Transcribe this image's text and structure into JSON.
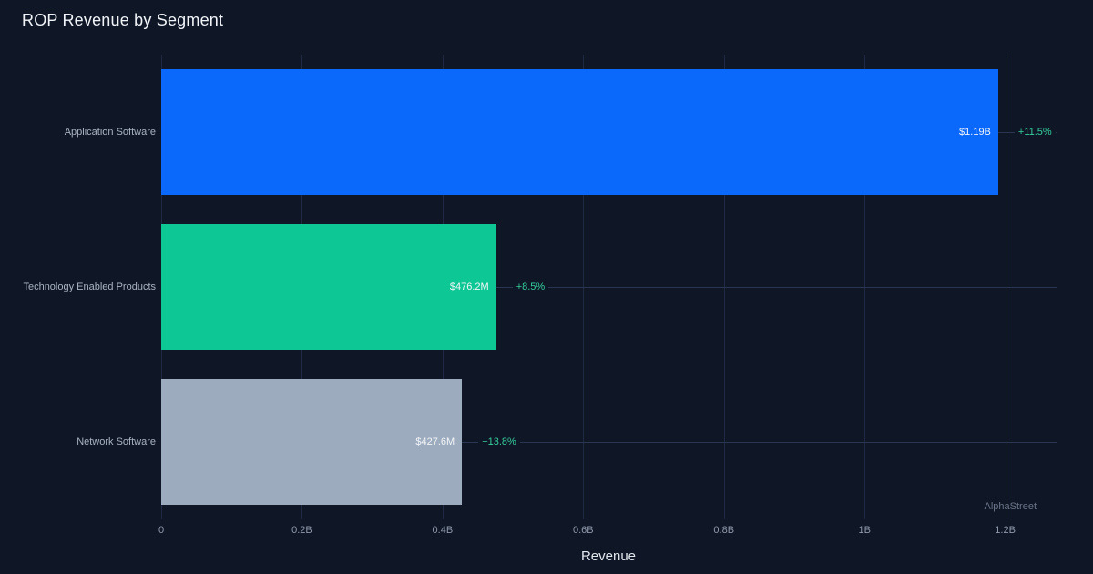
{
  "page": {
    "background": "#0f1726",
    "watermark": "AlphaStreet"
  },
  "chart_data": {
    "type": "bar",
    "orientation": "horizontal",
    "title": "ROP Revenue by Segment",
    "xlabel": "Revenue",
    "ylabel": "",
    "categories": [
      "Application Software",
      "Technology Enabled Products",
      "Network Software"
    ],
    "values": [
      1190000000,
      476200000,
      427600000
    ],
    "bars": [
      {
        "category": "Application Software",
        "value": 1190000000,
        "value_label": "$1.19B",
        "change_label": "+11.5%",
        "color": "#0a68fb"
      },
      {
        "category": "Technology Enabled Products",
        "value": 476200000,
        "value_label": "$476.2M",
        "change_label": "+8.5%",
        "color": "#0dc794"
      },
      {
        "category": "Network Software",
        "value": 427600000,
        "value_label": "$427.6M",
        "change_label": "+13.8%",
        "color": "#9dabbf"
      }
    ],
    "x_axis": {
      "label": "Revenue",
      "max": 1273000000,
      "ticks": [
        {
          "label": "0",
          "value": 0
        },
        {
          "label": "0.2B",
          "value": 200000000
        },
        {
          "label": "0.4B",
          "value": 400000000
        },
        {
          "label": "0.6B",
          "value": 600000000
        },
        {
          "label": "0.8B",
          "value": 800000000
        },
        {
          "label": "1B",
          "value": 1000000000
        },
        {
          "label": "1.2B",
          "value": 1200000000
        }
      ]
    },
    "legend": false,
    "grid": true,
    "colors": {
      "positive_change": "#35cf9e",
      "value_label": "#f2f5f9",
      "category_label": "#a9b3c2",
      "tick_label": "#8f99ab",
      "grid_line": "#1f2a42",
      "category_line": "#2a3650"
    }
  }
}
